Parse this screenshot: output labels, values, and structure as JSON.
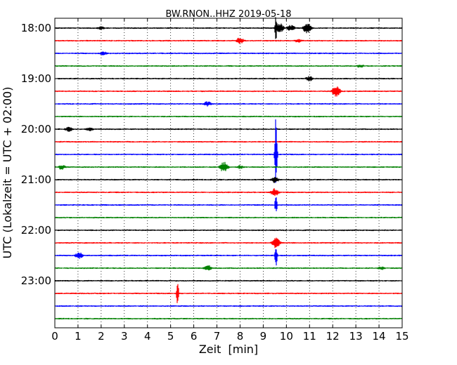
{
  "chart_data": {
    "type": "line",
    "title": "BW.RNON..HHZ 2019-05-18",
    "xlabel": "Zeit  [min]",
    "ylabel": "UTC (Lokalzeit = UTC + 02:00)",
    "xlim": [
      0,
      15
    ],
    "x_ticks": [
      "0",
      "1",
      "2",
      "3",
      "4",
      "5",
      "6",
      "7",
      "8",
      "9",
      "10",
      "11",
      "12",
      "13",
      "14",
      "15"
    ],
    "y_ticks": [
      "18:00",
      "19:00",
      "20:00",
      "21:00",
      "22:00",
      "23:00"
    ],
    "grid": "vertical dotted",
    "trace_colors": [
      "#000000",
      "#ff0000",
      "#0000ff",
      "#008000"
    ],
    "traces": [
      {
        "start": "18:00",
        "events": [
          [
            2.0,
            3
          ],
          [
            9.55,
            18
          ],
          [
            9.7,
            8
          ],
          [
            10.2,
            5
          ],
          [
            10.9,
            9
          ]
        ]
      },
      {
        "start": "18:15",
        "events": [
          [
            8.0,
            5
          ],
          [
            10.5,
            3
          ]
        ]
      },
      {
        "start": "18:30",
        "events": [
          [
            2.1,
            3
          ]
        ]
      },
      {
        "start": "18:45",
        "events": [
          [
            13.2,
            3
          ]
        ]
      },
      {
        "start": "19:00",
        "events": [
          [
            11.0,
            4
          ]
        ]
      },
      {
        "start": "19:15",
        "events": [
          [
            12.15,
            8
          ]
        ]
      },
      {
        "start": "19:30",
        "events": [
          [
            6.6,
            4
          ]
        ]
      },
      {
        "start": "19:45",
        "events": []
      },
      {
        "start": "20:00",
        "events": [
          [
            0.6,
            4
          ],
          [
            1.5,
            3
          ]
        ]
      },
      {
        "start": "20:15",
        "events": []
      },
      {
        "start": "20:30",
        "events": [
          [
            9.55,
            60
          ]
        ]
      },
      {
        "start": "20:45",
        "events": [
          [
            0.3,
            4
          ],
          [
            7.3,
            8
          ],
          [
            8.0,
            3
          ]
        ]
      },
      {
        "start": "21:00",
        "events": [
          [
            9.5,
            5
          ]
        ]
      },
      {
        "start": "21:15",
        "events": [
          [
            9.5,
            6
          ]
        ]
      },
      {
        "start": "21:30",
        "events": [
          [
            9.55,
            14
          ]
        ]
      },
      {
        "start": "21:45",
        "events": []
      },
      {
        "start": "22:00",
        "events": []
      },
      {
        "start": "22:15",
        "events": [
          [
            9.55,
            8
          ]
        ]
      },
      {
        "start": "22:30",
        "events": [
          [
            1.05,
            5
          ],
          [
            9.55,
            20
          ]
        ]
      },
      {
        "start": "22:45",
        "events": [
          [
            6.6,
            5
          ],
          [
            14.1,
            3
          ]
        ]
      },
      {
        "start": "23:00",
        "events": []
      },
      {
        "start": "23:15",
        "events": [
          [
            5.3,
            18
          ]
        ]
      },
      {
        "start": "23:30",
        "events": []
      },
      {
        "start": "23:45",
        "events": []
      }
    ]
  }
}
